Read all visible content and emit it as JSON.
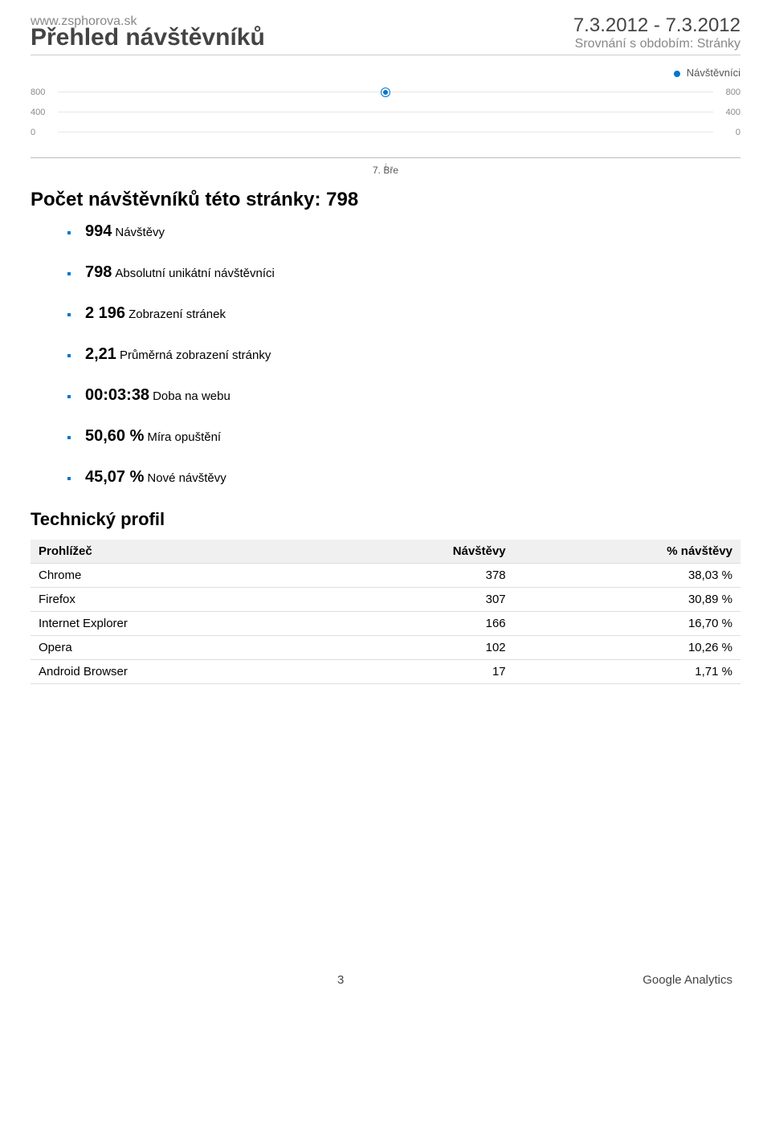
{
  "header": {
    "site_url": "www.zsphorova.sk",
    "title": "Přehled návštěvníků",
    "date_range": "7.3.2012 - 7.3.2012",
    "compare_note": "Srovnání s obdobím: Stránky"
  },
  "chart": {
    "legend_label": "Návštěvníci",
    "legend_color": "#0077cc",
    "y_ticks": [
      "800",
      "400",
      "0"
    ],
    "y_ticks_right": [
      "800",
      "400",
      "0"
    ],
    "x_label": "7. Bře",
    "point_value": 798,
    "point_color": "#0077cc",
    "grid_color": "#e8e8e8",
    "background_color": "#ffffff",
    "ylim": [
      0,
      800
    ]
  },
  "summary": {
    "title_prefix": "Počet návštěvníků této stránky: ",
    "title_value": "798"
  },
  "metrics": [
    {
      "value": "994",
      "label": "Návštěvy"
    },
    {
      "value": "798",
      "label": "Absolutní unikátní návštěvníci"
    },
    {
      "value": "2 196",
      "label": "Zobrazení stránek"
    },
    {
      "value": "2,21",
      "label": "Průměrná zobrazení stránky"
    },
    {
      "value": "00:03:38",
      "label": "Doba na webu"
    },
    {
      "value": "50,60 %",
      "label": "Míra opuštění"
    },
    {
      "value": "45,07 %",
      "label": "Nové návštěvy"
    }
  ],
  "tech_profile": {
    "title": "Technický profil",
    "columns": {
      "browser": "Prohlížeč",
      "visits": "Návštěvy",
      "pct": "% návštěvy"
    },
    "rows": [
      {
        "browser": "Chrome",
        "visits": "378",
        "pct": "38,03 %"
      },
      {
        "browser": "Firefox",
        "visits": "307",
        "pct": "30,89 %"
      },
      {
        "browser": "Internet Explorer",
        "visits": "166",
        "pct": "16,70 %"
      },
      {
        "browser": "Opera",
        "visits": "102",
        "pct": "10,26 %"
      },
      {
        "browser": "Android Browser",
        "visits": "17",
        "pct": "1,71 %"
      }
    ]
  },
  "footer": {
    "page_number": "3",
    "brand": "Google Analytics"
  }
}
